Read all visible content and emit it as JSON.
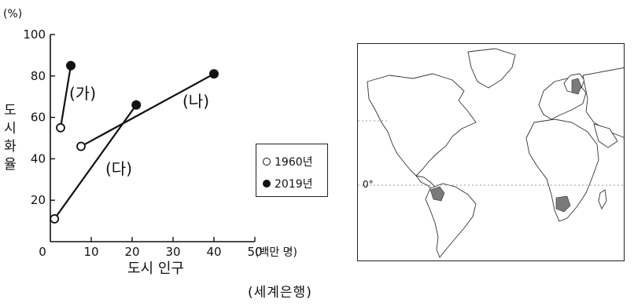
{
  "chart_data": {
    "type": "line",
    "ylabel": "도시화율",
    "xlabel": "도시 인구",
    "y_unit": "(%)",
    "x_unit": "(백만 명)",
    "xlim": [
      0,
      50
    ],
    "ylim": [
      0,
      100
    ],
    "x_ticks": [
      "0",
      "10",
      "20",
      "30",
      "40",
      "50"
    ],
    "y_ticks": [
      "20",
      "40",
      "60",
      "80",
      "100"
    ],
    "legend": [
      {
        "label": "1960년",
        "marker": "open-circle"
      },
      {
        "label": "2019년",
        "marker": "filled-circle"
      }
    ],
    "series": [
      {
        "name": "(가)",
        "points": [
          {
            "year": "1960",
            "x": 2.5,
            "y": 55
          },
          {
            "year": "2019",
            "x": 5,
            "y": 85
          }
        ]
      },
      {
        "name": "(나)",
        "points": [
          {
            "year": "1960",
            "x": 7.5,
            "y": 46
          },
          {
            "year": "2019",
            "x": 40,
            "y": 81
          }
        ]
      },
      {
        "name": "(다)",
        "points": [
          {
            "year": "1960",
            "x": 1,
            "y": 11
          },
          {
            "year": "2019",
            "x": 21,
            "y": 66
          }
        ]
      }
    ]
  },
  "map": {
    "equator_label": "0°",
    "highlight_color": "#7a7a7a"
  },
  "source": "(세계은행)"
}
